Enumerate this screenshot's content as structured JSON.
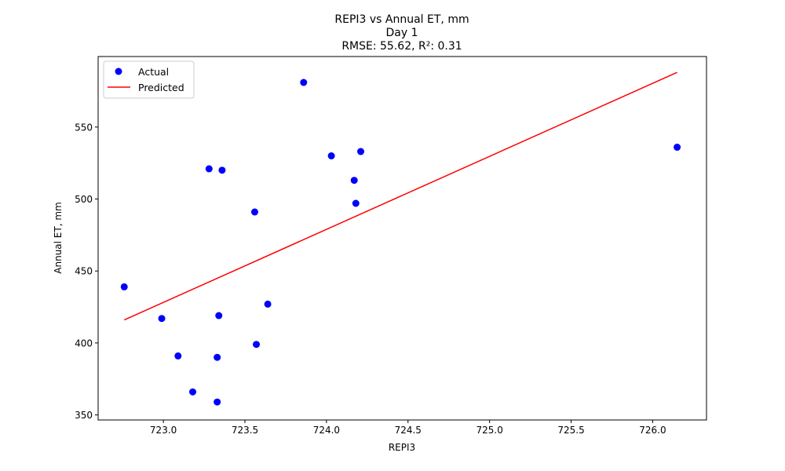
{
  "chart_data": {
    "type": "scatter",
    "title_lines": [
      "REPI3 vs Annual ET, mm",
      "Day 1",
      "RMSE: 55.62, R²: 0.31"
    ],
    "xlabel": "REPI3",
    "ylabel": "Annual ET, mm",
    "xlim": [
      722.6,
      726.33
    ],
    "ylim": [
      346.5,
      599.0
    ],
    "xticks": [
      723.0,
      723.5,
      724.0,
      724.5,
      725.0,
      725.5,
      726.0
    ],
    "xtick_labels": [
      "723.0",
      "723.5",
      "724.0",
      "724.5",
      "725.0",
      "725.5",
      "726.0"
    ],
    "yticks": [
      350,
      400,
      450,
      500,
      550
    ],
    "ytick_labels": [
      "350",
      "400",
      "450",
      "500",
      "550"
    ],
    "grid": false,
    "legend_position": "top-left",
    "series": [
      {
        "name": "Actual",
        "kind": "scatter",
        "color": "#0000ff",
        "points": [
          {
            "x": 722.76,
            "y": 439
          },
          {
            "x": 722.99,
            "y": 417
          },
          {
            "x": 723.09,
            "y": 391
          },
          {
            "x": 723.18,
            "y": 366
          },
          {
            "x": 723.28,
            "y": 521
          },
          {
            "x": 723.33,
            "y": 359
          },
          {
            "x": 723.33,
            "y": 390
          },
          {
            "x": 723.34,
            "y": 419
          },
          {
            "x": 723.36,
            "y": 520
          },
          {
            "x": 723.56,
            "y": 491
          },
          {
            "x": 723.57,
            "y": 399
          },
          {
            "x": 723.64,
            "y": 427
          },
          {
            "x": 723.86,
            "y": 581
          },
          {
            "x": 724.03,
            "y": 530
          },
          {
            "x": 724.17,
            "y": 513
          },
          {
            "x": 724.18,
            "y": 497
          },
          {
            "x": 724.21,
            "y": 533
          },
          {
            "x": 726.15,
            "y": 536
          }
        ]
      },
      {
        "name": "Predicted",
        "kind": "line",
        "color": "#ff0000",
        "points": [
          {
            "x": 722.76,
            "y": 416
          },
          {
            "x": 726.15,
            "y": 588
          }
        ]
      }
    ]
  }
}
